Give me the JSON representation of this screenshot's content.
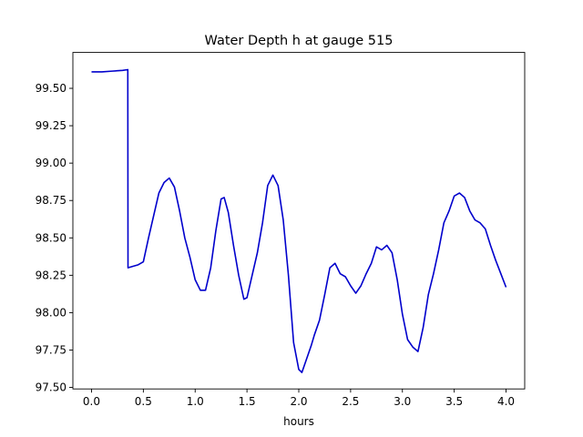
{
  "chart_data": {
    "type": "line",
    "title": "Water Depth h at gauge 515",
    "xlabel": "hours",
    "ylabel": "",
    "xlim": [
      -0.18,
      4.18
    ],
    "ylim": [
      97.49,
      99.74
    ],
    "grid": false,
    "legend": "none",
    "x_ticks": [
      0.0,
      0.5,
      1.0,
      1.5,
      2.0,
      2.5,
      3.0,
      3.5,
      4.0
    ],
    "x_tick_labels": [
      "0.0",
      "0.5",
      "1.0",
      "1.5",
      "2.0",
      "2.5",
      "3.0",
      "3.5",
      "4.0"
    ],
    "y_ticks": [
      97.5,
      97.75,
      98.0,
      98.25,
      98.5,
      98.75,
      99.0,
      99.25,
      99.5
    ],
    "y_tick_labels": [
      "97.50",
      "97.75",
      "98.00",
      "98.25",
      "98.50",
      "98.75",
      "99.00",
      "99.25",
      "99.50"
    ],
    "series": [
      {
        "color": "#0000cc",
        "points": [
          [
            0.0,
            99.61
          ],
          [
            0.1,
            99.61
          ],
          [
            0.2,
            99.615
          ],
          [
            0.3,
            99.62
          ],
          [
            0.35,
            99.625
          ],
          [
            0.352,
            98.3
          ],
          [
            0.4,
            98.31
          ],
          [
            0.45,
            98.32
          ],
          [
            0.5,
            98.34
          ],
          [
            0.55,
            98.5
          ],
          [
            0.6,
            98.65
          ],
          [
            0.65,
            98.8
          ],
          [
            0.7,
            98.87
          ],
          [
            0.75,
            98.9
          ],
          [
            0.8,
            98.84
          ],
          [
            0.85,
            98.68
          ],
          [
            0.9,
            98.5
          ],
          [
            0.95,
            98.37
          ],
          [
            1.0,
            98.22
          ],
          [
            1.05,
            98.15
          ],
          [
            1.1,
            98.15
          ],
          [
            1.15,
            98.3
          ],
          [
            1.2,
            98.55
          ],
          [
            1.25,
            98.76
          ],
          [
            1.28,
            98.77
          ],
          [
            1.32,
            98.67
          ],
          [
            1.37,
            98.45
          ],
          [
            1.42,
            98.25
          ],
          [
            1.47,
            98.09
          ],
          [
            1.5,
            98.1
          ],
          [
            1.55,
            98.25
          ],
          [
            1.6,
            98.4
          ],
          [
            1.65,
            98.6
          ],
          [
            1.7,
            98.85
          ],
          [
            1.75,
            98.92
          ],
          [
            1.8,
            98.85
          ],
          [
            1.85,
            98.62
          ],
          [
            1.9,
            98.25
          ],
          [
            1.95,
            97.8
          ],
          [
            2.0,
            97.62
          ],
          [
            2.03,
            97.6
          ],
          [
            2.07,
            97.68
          ],
          [
            2.12,
            97.78
          ],
          [
            2.15,
            97.85
          ],
          [
            2.2,
            97.95
          ],
          [
            2.25,
            98.12
          ],
          [
            2.3,
            98.3
          ],
          [
            2.35,
            98.33
          ],
          [
            2.4,
            98.26
          ],
          [
            2.45,
            98.24
          ],
          [
            2.5,
            98.18
          ],
          [
            2.55,
            98.13
          ],
          [
            2.6,
            98.18
          ],
          [
            2.65,
            98.26
          ],
          [
            2.7,
            98.33
          ],
          [
            2.75,
            98.44
          ],
          [
            2.8,
            98.42
          ],
          [
            2.85,
            98.45
          ],
          [
            2.9,
            98.4
          ],
          [
            2.95,
            98.22
          ],
          [
            3.0,
            97.99
          ],
          [
            3.05,
            97.82
          ],
          [
            3.1,
            97.77
          ],
          [
            3.15,
            97.74
          ],
          [
            3.2,
            97.9
          ],
          [
            3.25,
            98.12
          ],
          [
            3.3,
            98.26
          ],
          [
            3.35,
            98.42
          ],
          [
            3.4,
            98.6
          ],
          [
            3.45,
            98.68
          ],
          [
            3.5,
            98.78
          ],
          [
            3.55,
            98.8
          ],
          [
            3.6,
            98.77
          ],
          [
            3.65,
            98.68
          ],
          [
            3.7,
            98.62
          ],
          [
            3.75,
            98.6
          ],
          [
            3.8,
            98.56
          ],
          [
            3.85,
            98.45
          ],
          [
            3.9,
            98.35
          ],
          [
            3.95,
            98.26
          ],
          [
            4.0,
            98.17
          ]
        ]
      }
    ]
  }
}
